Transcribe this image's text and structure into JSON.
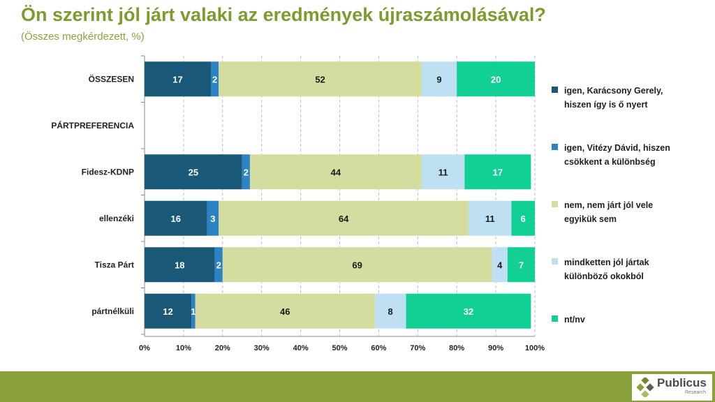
{
  "header": {
    "title": "Ön szerint jól járt valaki az eredmények újraszámolásával?",
    "subtitle": "(Összes megkérdezett, %)"
  },
  "colors": {
    "title": "#7f9a2f",
    "footer": "#8aa03b",
    "series": [
      "#1a5878",
      "#2b82c4",
      "#d5dc9f",
      "#bfe0f3",
      "#12cf96"
    ]
  },
  "chart_data": {
    "type": "bar",
    "orientation": "horizontal",
    "stacked": "100%",
    "categories": [
      "ÖSSZESEN",
      "PÁRTPREFERENCIA",
      "Fidesz-KDNP",
      "ellenzéki",
      "Tisza Párt",
      "pártnélküli"
    ],
    "series": [
      {
        "name": "igen, Karácsony Gerely, hiszen így is ő nyert",
        "values": [
          17,
          null,
          25,
          16,
          18,
          12
        ]
      },
      {
        "name": "igen, Vitézy Dávid, hiszen csökkent a különbség",
        "values": [
          2,
          null,
          2,
          3,
          2,
          1
        ]
      },
      {
        "name": "nem, nem járt jól vele egyikük sem",
        "values": [
          52,
          null,
          44,
          64,
          69,
          46
        ]
      },
      {
        "name": "mindketten jól jártak különböző okokból",
        "values": [
          9,
          null,
          11,
          11,
          4,
          8
        ]
      },
      {
        "name": "nt/nv",
        "values": [
          20,
          null,
          17,
          6,
          7,
          32
        ]
      }
    ],
    "xlim": [
      0,
      100
    ],
    "xticks": [
      "0%",
      "10%",
      "20%",
      "30%",
      "40%",
      "50%",
      "60%",
      "70%",
      "80%",
      "90%",
      "100%"
    ],
    "grid": "vertical dashed",
    "legend": "right"
  },
  "legend": [
    {
      "line1": "igen, Karácsony Gerely,",
      "line2": "hiszen így is ő nyert"
    },
    {
      "line1": "igen, Vitézy Dávid, hiszen",
      "line2": "csökkent a különbség"
    },
    {
      "line1": "nem, nem járt jól vele",
      "line2": "egyikük sem"
    },
    {
      "line1": "mindketten jól jártak",
      "line2": "különböző okokból"
    },
    {
      "line1": "nt/nv",
      "line2": ""
    }
  ],
  "logo": {
    "name": "Publicus",
    "sub": "Research"
  }
}
